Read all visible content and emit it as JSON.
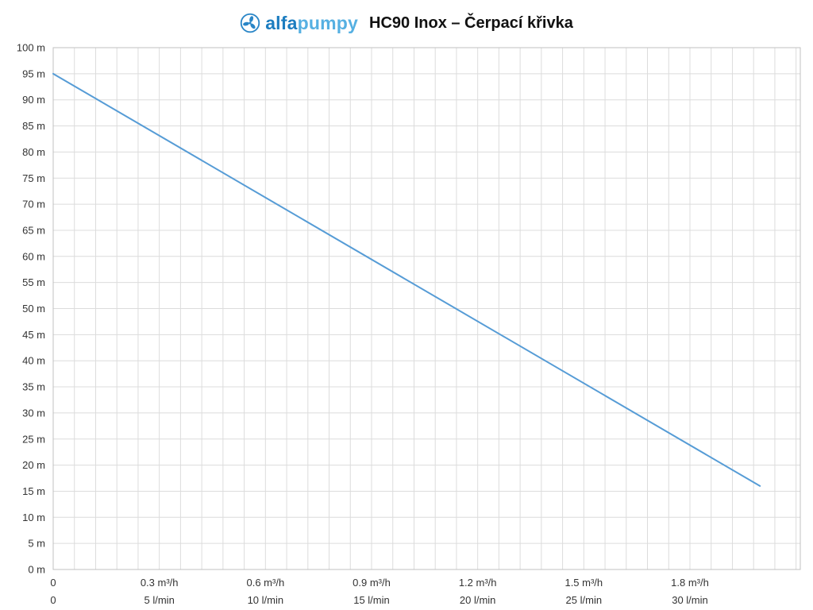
{
  "header": {
    "brand_bold": "alfa",
    "brand_light": "pumpy",
    "brand_color_bold": "#1c7dc0",
    "brand_color_light": "#56b0e2",
    "title": "HC90 Inox – Čerpací křivka"
  },
  "chart_data": {
    "type": "line",
    "title": "HC90 Inox – Čerpací křivka",
    "xlabel": "",
    "ylabel": "",
    "x_unit_primary": "m³/h",
    "x_unit_secondary": "l/min",
    "x_unit_internal": "l/min",
    "xlim": [
      0,
      35.2
    ],
    "ylim": [
      0,
      100
    ],
    "grid": {
      "on": true,
      "color": "#dcdcdc",
      "x_step": 1,
      "y_step": 5
    },
    "border_color": "#c0c0c0",
    "legend": "none",
    "series": [
      {
        "name": "HC90 Inox čerpací křivka",
        "color": "#569cd6",
        "width": 2,
        "points": [
          [
            0,
            95
          ],
          [
            33.3,
            16
          ]
        ]
      }
    ],
    "y_ticks": [
      {
        "value": 0,
        "label": "0 m"
      },
      {
        "value": 5,
        "label": "5 m"
      },
      {
        "value": 10,
        "label": "10 m"
      },
      {
        "value": 15,
        "label": "15 m"
      },
      {
        "value": 20,
        "label": "20 m"
      },
      {
        "value": 25,
        "label": "25 m"
      },
      {
        "value": 30,
        "label": "30 m"
      },
      {
        "value": 35,
        "label": "35 m"
      },
      {
        "value": 40,
        "label": "40 m"
      },
      {
        "value": 45,
        "label": "45 m"
      },
      {
        "value": 50,
        "label": "50 m"
      },
      {
        "value": 55,
        "label": "55 m"
      },
      {
        "value": 60,
        "label": "60 m"
      },
      {
        "value": 65,
        "label": "65 m"
      },
      {
        "value": 70,
        "label": "70 m"
      },
      {
        "value": 75,
        "label": "75 m"
      },
      {
        "value": 80,
        "label": "80 m"
      },
      {
        "value": 85,
        "label": "85 m"
      },
      {
        "value": 90,
        "label": "90 m"
      },
      {
        "value": 95,
        "label": "95 m"
      },
      {
        "value": 100,
        "label": "100 m"
      }
    ],
    "x_ticks": [
      {
        "value": 0,
        "label_m3h": "0",
        "label_lmin": "0"
      },
      {
        "value": 5,
        "label_m3h": "0.3 m³/h",
        "label_lmin": "5 l/min"
      },
      {
        "value": 10,
        "label_m3h": "0.6 m³/h",
        "label_lmin": "10 l/min"
      },
      {
        "value": 15,
        "label_m3h": "0.9 m³/h",
        "label_lmin": "15 l/min"
      },
      {
        "value": 20,
        "label_m3h": "1.2 m³/h",
        "label_lmin": "20 l/min"
      },
      {
        "value": 25,
        "label_m3h": "1.5 m³/h",
        "label_lmin": "25 l/min"
      },
      {
        "value": 30,
        "label_m3h": "1.8 m³/h",
        "label_lmin": "30 l/min"
      }
    ]
  }
}
